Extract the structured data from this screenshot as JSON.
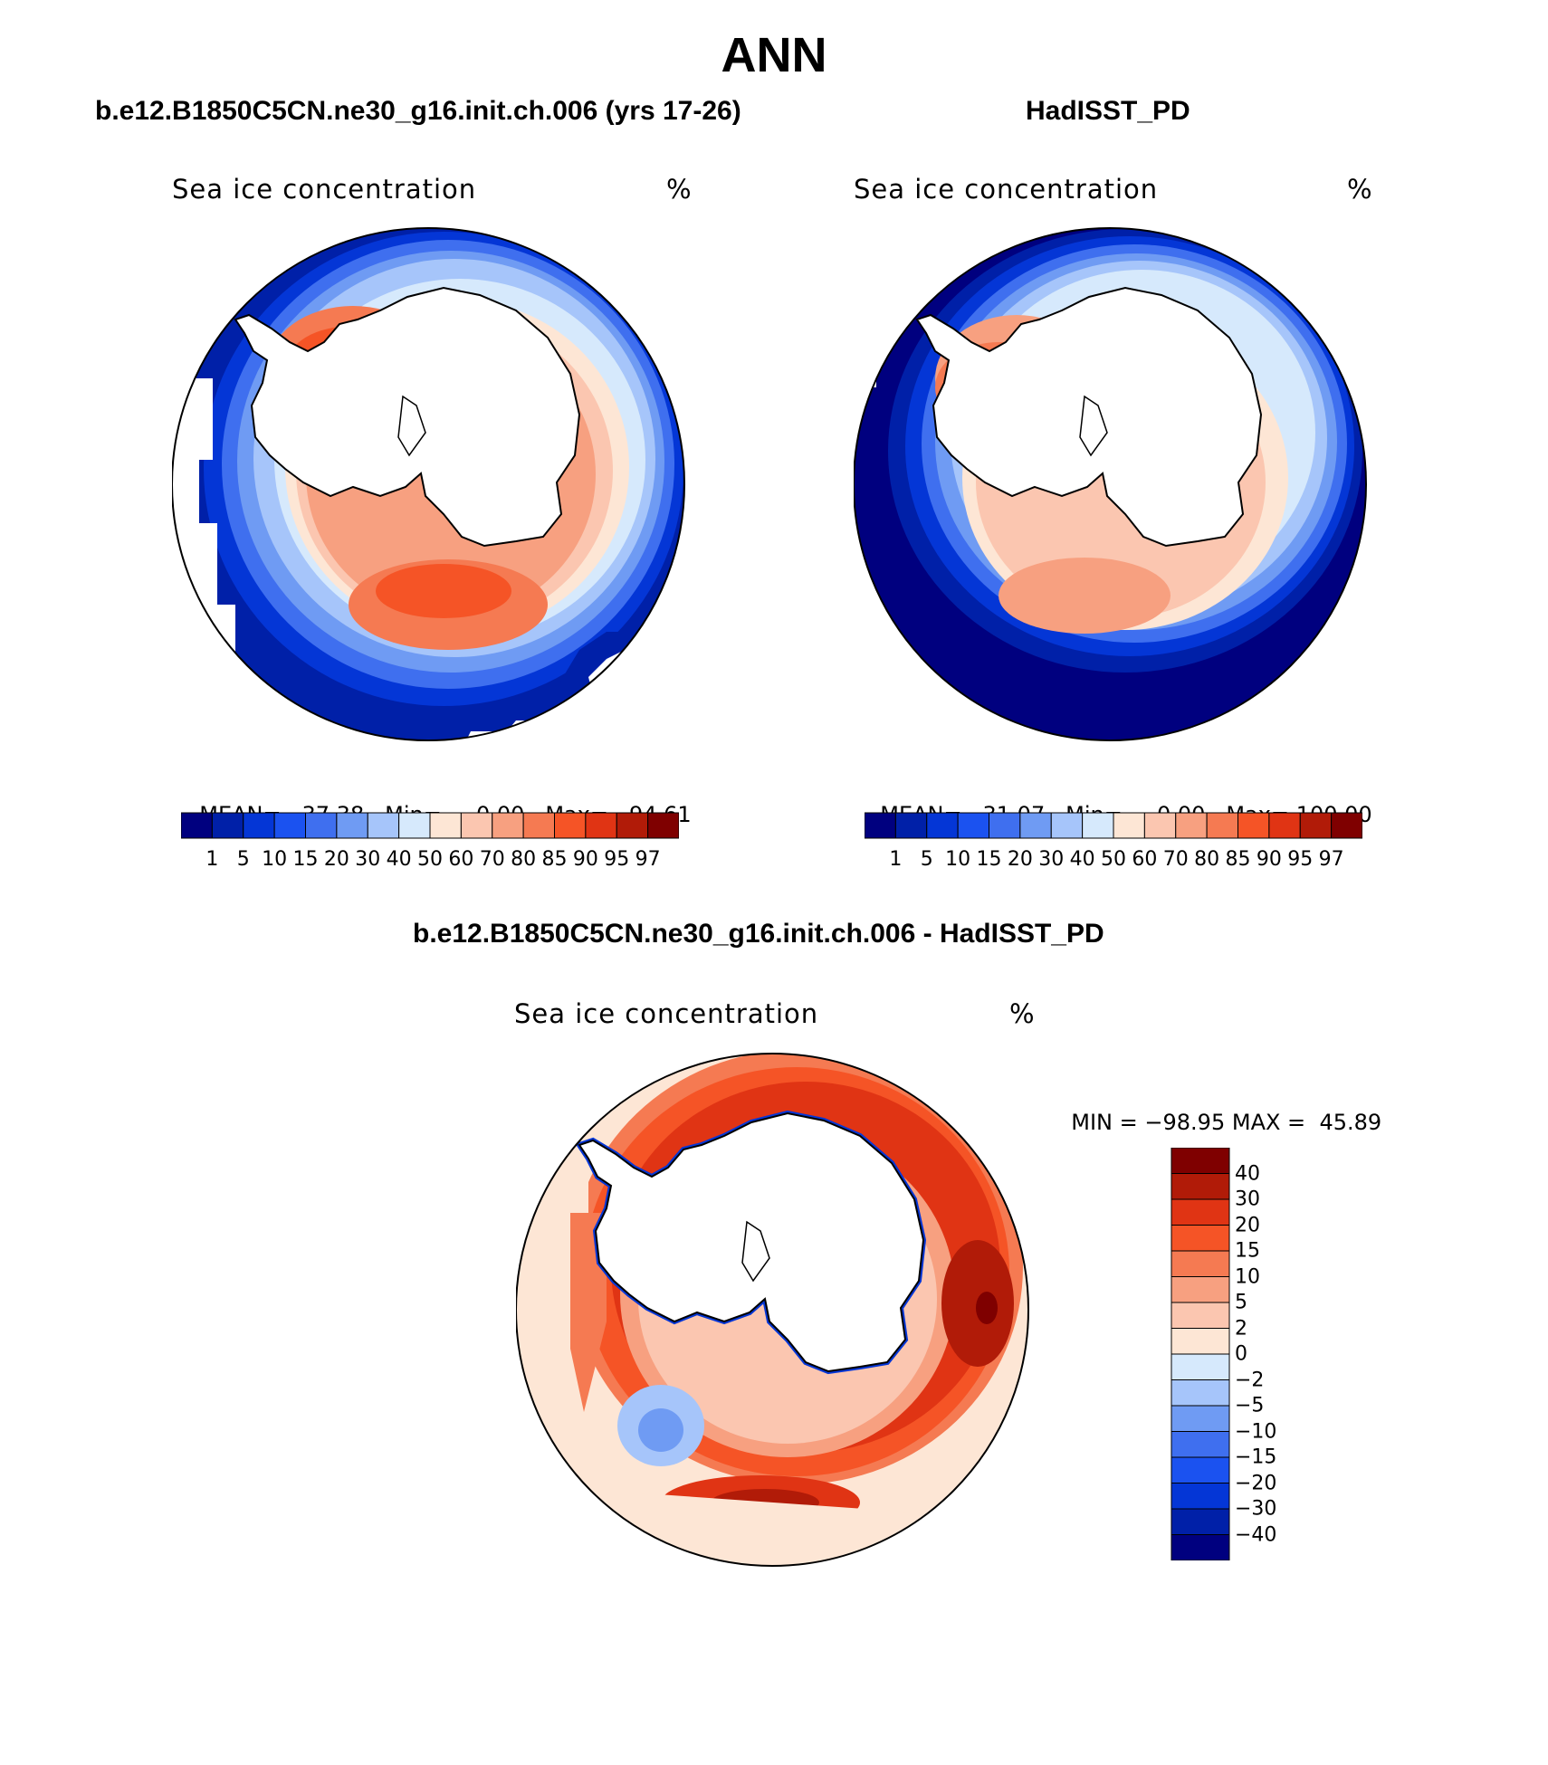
{
  "figure": {
    "title": "ANN"
  },
  "panels": [
    {
      "title": "b.e12.B1850C5CN.ne30_g16.init.ch.006 (yrs 17-26)",
      "variable": "Sea ice concentration",
      "units": "%",
      "stats": {
        "mean_label": "MEAN=",
        "mean": "37.38",
        "min_label": "Min=",
        "min": "0.00",
        "max_label": "Max=",
        "max": "94.61"
      }
    },
    {
      "title": "HadISST_PD",
      "variable": "Sea ice concentration",
      "units": "%",
      "stats": {
        "mean_label": "MEAN=",
        "mean": "31.07",
        "min_label": "Min=",
        "min": "0.00",
        "max_label": "Max=",
        "max": "100.00"
      }
    },
    {
      "title": "b.e12.B1850C5CN.ne30_g16.init.ch.006 - HadISST_PD",
      "variable": "Sea ice concentration",
      "units": "%",
      "stats": {
        "min_label": "MIN =",
        "min": "−98.95",
        "max_label": "MAX =",
        "max": "45.89"
      }
    }
  ],
  "colorbar_abs": {
    "ticks": [
      "1",
      "5",
      "10",
      "15",
      "20",
      "30",
      "40",
      "50",
      "60",
      "70",
      "80",
      "85",
      "90",
      "95",
      "97"
    ],
    "colors": [
      "#00007f",
      "#0020a8",
      "#0436d6",
      "#1b52f0",
      "#3f6fef",
      "#6f9bf3",
      "#a6c5fa",
      "#d6e9fc",
      "#fde6d5",
      "#fbc6b0",
      "#f7a080",
      "#f57a52",
      "#f55426",
      "#e03414",
      "#b11b08",
      "#7f0000"
    ]
  },
  "colorbar_diff": {
    "ticks": [
      "40",
      "30",
      "20",
      "15",
      "10",
      "5",
      "2",
      "0",
      "−2",
      "−5",
      "−10",
      "−15",
      "−20",
      "−30",
      "−40"
    ],
    "colors": [
      "#7f0000",
      "#b11b08",
      "#e03414",
      "#f55426",
      "#f57a52",
      "#f7a080",
      "#fbc6b0",
      "#fde6d5",
      "#d6e9fc",
      "#a6c5fa",
      "#6f9bf3",
      "#3f6fef",
      "#1b52f0",
      "#0436d6",
      "#0020a8",
      "#00007f"
    ]
  },
  "chart_data": [
    {
      "type": "heatmap",
      "title": "b.e12.B1850C5CN.ne30_g16.init.ch.006 (yrs 17-26)",
      "variable": "Sea ice concentration",
      "units": "%",
      "projection": "south polar stereographic",
      "mean": 37.38,
      "min": 0.0,
      "max": 94.61,
      "contour_levels": [
        1,
        5,
        10,
        15,
        20,
        30,
        40,
        50,
        60,
        70,
        80,
        85,
        90,
        95,
        97
      ]
    },
    {
      "type": "heatmap",
      "title": "HadISST_PD",
      "variable": "Sea ice concentration",
      "units": "%",
      "projection": "south polar stereographic",
      "mean": 31.07,
      "min": 0.0,
      "max": 100.0,
      "contour_levels": [
        1,
        5,
        10,
        15,
        20,
        30,
        40,
        50,
        60,
        70,
        80,
        85,
        90,
        95,
        97
      ]
    },
    {
      "type": "heatmap",
      "title": "b.e12.B1850C5CN.ne30_g16.init.ch.006 - HadISST_PD",
      "variable": "Sea ice concentration",
      "units": "%",
      "projection": "south polar stereographic",
      "min": -98.95,
      "max": 45.89,
      "contour_levels": [
        -40,
        -30,
        -20,
        -15,
        -10,
        -5,
        -2,
        0,
        2,
        5,
        10,
        15,
        20,
        30,
        40
      ]
    }
  ]
}
